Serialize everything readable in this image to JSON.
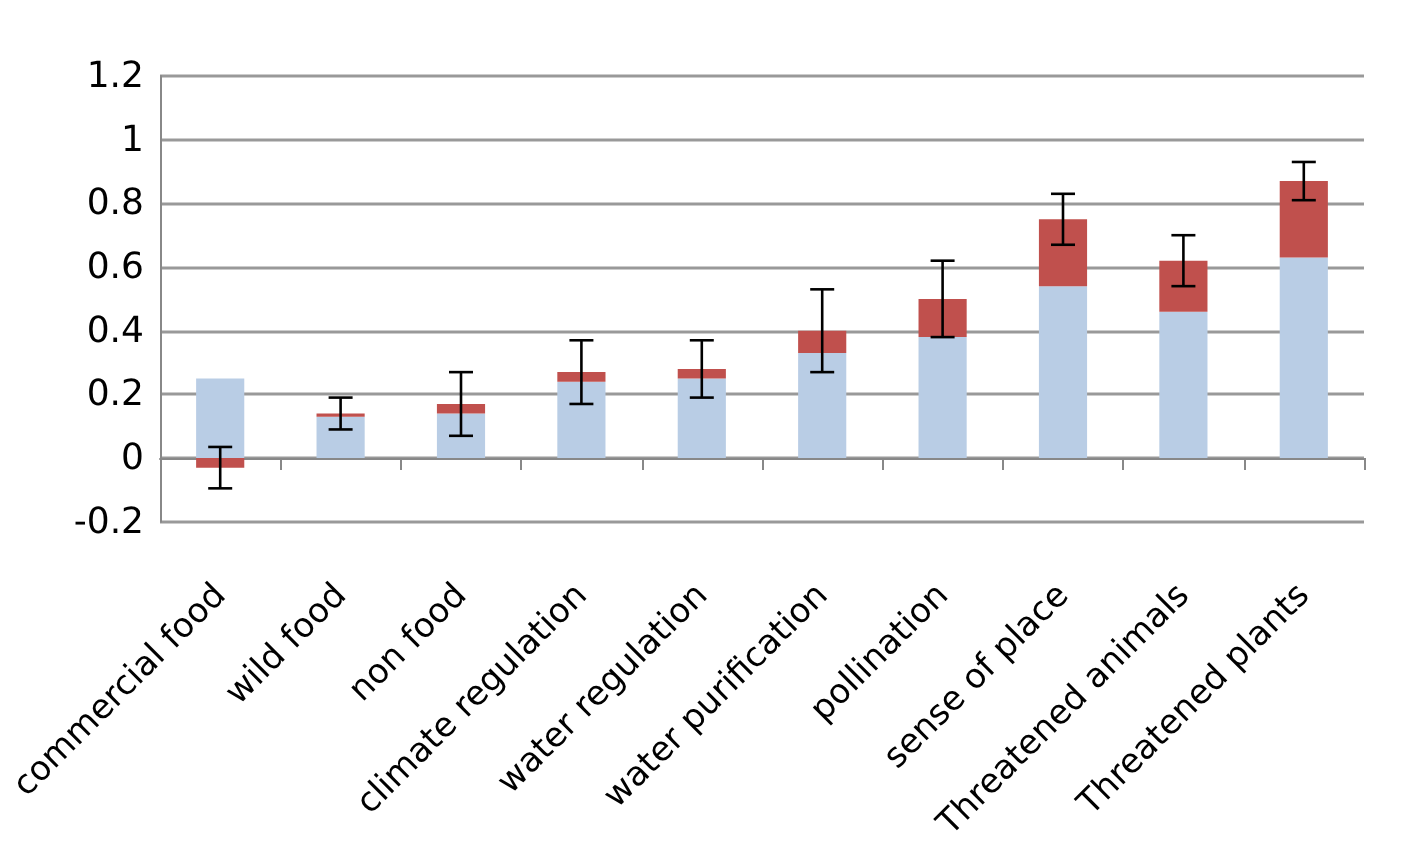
{
  "chart_data": {
    "type": "bar",
    "stacked": true,
    "categories": [
      "commercial food",
      "wild food",
      "non food",
      "climate regulation",
      "water regulation",
      "water purification",
      "pollination",
      "sense of place",
      "Threatened animals",
      "Threatened plants"
    ],
    "series": [
      {
        "color": "#b9cde5",
        "values": [
          0.25,
          0.13,
          0.14,
          0.24,
          0.25,
          0.33,
          0.38,
          0.54,
          0.46,
          0.63
        ]
      },
      {
        "color": "#c0504d",
        "values": [
          -0.03,
          0.01,
          0.03,
          0.03,
          0.03,
          0.07,
          0.12,
          0.21,
          0.16,
          0.24
        ],
        "errors": [
          0.065,
          0.05,
          0.1,
          0.1,
          0.09,
          0.13,
          0.12,
          0.08,
          0.08,
          0.06
        ]
      }
    ],
    "ylim": [
      -0.2,
      1.2
    ],
    "yticks": [
      -0.2,
      0,
      0.2,
      0.4,
      0.6,
      0.8,
      1,
      1.2
    ],
    "grid": "y"
  }
}
